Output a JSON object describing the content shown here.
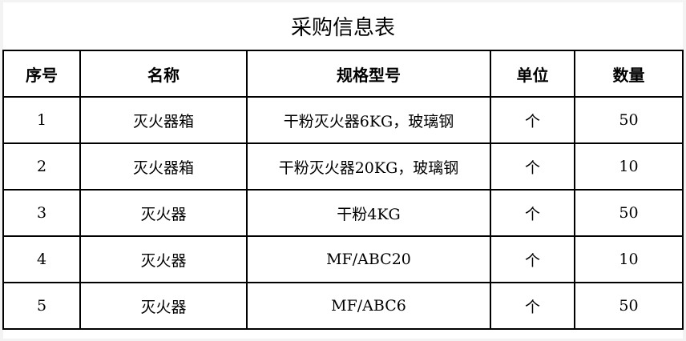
{
  "title": "采购信息表",
  "columns": [
    "序号",
    "名称",
    "规格型号",
    "单位",
    "数量"
  ],
  "rows": [
    [
      "1",
      "灭火器箱",
      "干粉灭火器6KG，玻璃钢",
      "个",
      "50"
    ],
    [
      "2",
      "灭火器箱",
      "干粉灭火器20KG，玻璃钢",
      "个",
      "10"
    ],
    [
      "3",
      "灭火器",
      "干粉4KG",
      "个",
      "50"
    ],
    [
      "4",
      "灭火器",
      "MF/ABC20",
      "个",
      "10"
    ],
    [
      "5",
      "灭火器",
      "MF/ABC6",
      "个",
      "50"
    ]
  ]
}
